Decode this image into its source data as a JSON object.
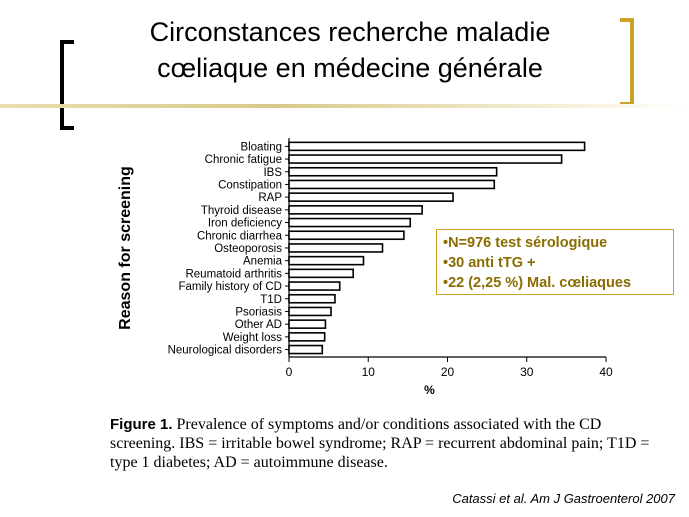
{
  "slide": {
    "title_line1": "Circonstances recherche maladie",
    "title_line2": "cœliaque en médecine générale"
  },
  "info_box": {
    "lines": [
      "•N=976 test sérologique",
      "•30 anti tTG +",
      "•22 (2,25 %)  Mal. cœliaques"
    ]
  },
  "caption": {
    "label": "Figure 1.",
    "text": "Prevalence of symptoms and/or conditions associated with the CD screening. IBS = irritable bowel syndrome; RAP = recurrent abdominal pain; T1D = type 1 diabetes; AD = autoimmune disease."
  },
  "citation": "Catassi et al. Am J Gastroenterol 2007",
  "colors": {
    "bracket_left": "#000000",
    "bracket_right": "#c9a227",
    "info_text": "#8a6d00",
    "bars": "#ffffff",
    "bar_stroke": "#000000"
  },
  "chart_data": {
    "type": "bar",
    "orientation": "horizontal",
    "categories": [
      "Bloating",
      "Chronic fatigue",
      "IBS",
      "Constipation",
      "RAP",
      "Thyroid disease",
      "Iron deficiency",
      "Chronic diarrhea",
      "Osteoporosis",
      "Anemia",
      "Reumatoid arthritis",
      "Family history of CD",
      "T1D",
      "Psoriasis",
      "Other AD",
      "Weight loss",
      "Neurological disorders"
    ],
    "values": [
      37.3,
      34.4,
      26.2,
      25.9,
      20.7,
      16.8,
      15.3,
      14.5,
      11.8,
      9.4,
      8.1,
      6.4,
      5.8,
      5.3,
      4.6,
      4.5,
      4.2
    ],
    "xlabel": "%",
    "ylabel": "Reason for screening",
    "xlim": [
      0,
      40
    ],
    "xticks": [
      "0",
      "10",
      "20",
      "30",
      "40"
    ],
    "grid": false
  }
}
